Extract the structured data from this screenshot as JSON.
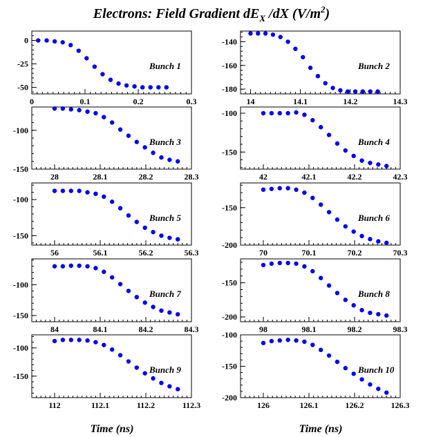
{
  "figure": {
    "title_main": "Electrons: Field Gradient dE",
    "title_sub": "X",
    "title_mid": " /dX (V/m",
    "title_sup": "2",
    "title_end": ")",
    "xlabel": "Time (ns)",
    "colors": {
      "points": "#0000ee",
      "axes": "#000000"
    }
  },
  "chart_data": [
    {
      "type": "scatter",
      "label": "Bunch 1",
      "xlim": [
        0,
        0.3
      ],
      "ylim": [
        -57,
        10
      ],
      "xticks": [
        "0",
        "0.1",
        "0.2",
        "0.3"
      ],
      "yticks": [
        "0",
        "-25",
        "-50"
      ],
      "x": [
        0.012,
        0.028,
        0.043,
        0.058,
        0.073,
        0.088,
        0.103,
        0.118,
        0.133,
        0.148,
        0.163,
        0.178,
        0.193,
        0.208,
        0.223,
        0.238,
        0.253
      ],
      "y": [
        0,
        0,
        -1,
        -2,
        -5,
        -11,
        -19,
        -28,
        -36,
        -42,
        -46,
        -48,
        -49,
        -50,
        -50,
        -50,
        -50
      ]
    },
    {
      "type": "scatter",
      "label": "Bunch 2",
      "xlim": [
        13.98,
        14.3
      ],
      "ylim": [
        -184,
        -131
      ],
      "xticks": [
        "14",
        "14.1",
        "14.2",
        "14.3"
      ],
      "yticks": [
        "-140",
        "-160",
        "-180"
      ],
      "x": [
        14.0,
        14.015,
        14.03,
        14.045,
        14.06,
        14.075,
        14.09,
        14.105,
        14.12,
        14.135,
        14.15,
        14.165,
        14.18,
        14.195,
        14.21,
        14.225,
        14.24,
        14.255
      ],
      "y": [
        -133,
        -133,
        -133,
        -134,
        -136,
        -140,
        -146,
        -153,
        -162,
        -169,
        -175,
        -179,
        -181,
        -182,
        -182,
        -182,
        -182,
        -182
      ]
    },
    {
      "type": "scatter",
      "label": "Bunch 3",
      "xlim": [
        27.95,
        28.3
      ],
      "ylim": [
        -150,
        -70
      ],
      "xticks": [
        "28",
        "28.1",
        "28.2",
        "28.3"
      ],
      "yticks": [
        "-100",
        "-150"
      ],
      "x": [
        28.0,
        28.018,
        28.036,
        28.054,
        28.072,
        28.09,
        28.108,
        28.126,
        28.144,
        28.162,
        28.18,
        28.198,
        28.216,
        28.234,
        28.252,
        28.27
      ],
      "y": [
        -72,
        -72,
        -73,
        -74,
        -76,
        -78,
        -83,
        -90,
        -99,
        -107,
        -115,
        -122,
        -129,
        -135,
        -138,
        -140
      ]
    },
    {
      "type": "scatter",
      "label": "Bunch 4",
      "xlim": [
        41.95,
        42.3
      ],
      "ylim": [
        -172,
        -92
      ],
      "xticks": [
        "42",
        "42.1",
        "42.2",
        "42.3"
      ],
      "yticks": [
        "-100",
        "-150"
      ],
      "x": [
        42.0,
        42.018,
        42.036,
        42.054,
        42.072,
        42.09,
        42.108,
        42.126,
        42.144,
        42.162,
        42.18,
        42.198,
        42.216,
        42.234,
        42.252,
        42.27
      ],
      "y": [
        -100,
        -100,
        -100,
        -100,
        -99,
        -102,
        -109,
        -118,
        -128,
        -139,
        -148,
        -155,
        -161,
        -164,
        -166,
        -168
      ]
    },
    {
      "type": "scatter",
      "label": "Bunch 5",
      "xlim": [
        55.95,
        56.3
      ],
      "ylim": [
        -163,
        -77
      ],
      "xticks": [
        "56",
        "56.1",
        "56.2",
        "56.3"
      ],
      "yticks": [
        "-100",
        "-150"
      ],
      "x": [
        56.0,
        56.018,
        56.036,
        56.054,
        56.072,
        56.09,
        56.108,
        56.126,
        56.144,
        56.162,
        56.18,
        56.198,
        56.216,
        56.234,
        56.252,
        56.27
      ],
      "y": [
        -88,
        -88,
        -88,
        -88,
        -90,
        -92,
        -96,
        -103,
        -112,
        -122,
        -131,
        -139,
        -145,
        -150,
        -153,
        -155
      ]
    },
    {
      "type": "scatter",
      "label": "Bunch 6",
      "xlim": [
        69.95,
        70.3
      ],
      "ylim": [
        -200,
        -117
      ],
      "xticks": [
        "70",
        "70.1",
        "70.2",
        "70.3"
      ],
      "yticks": [
        "-150",
        "-200"
      ],
      "x": [
        70.0,
        70.018,
        70.036,
        70.054,
        70.072,
        70.09,
        70.108,
        70.126,
        70.144,
        70.162,
        70.18,
        70.198,
        70.216,
        70.234,
        70.252,
        70.27
      ],
      "y": [
        -126,
        -125,
        -124,
        -124,
        -126,
        -130,
        -137,
        -146,
        -156,
        -166,
        -175,
        -182,
        -188,
        -192,
        -195,
        -197
      ]
    },
    {
      "type": "scatter",
      "label": "Bunch 7",
      "xlim": [
        83.95,
        84.3
      ],
      "ylim": [
        -160,
        -58
      ],
      "xticks": [
        "84",
        "84.1",
        "84.2",
        "84.3"
      ],
      "yticks": [
        "-100",
        "-150"
      ],
      "x": [
        84.0,
        84.018,
        84.036,
        84.054,
        84.072,
        84.09,
        84.108,
        84.126,
        84.144,
        84.162,
        84.18,
        84.198,
        84.216,
        84.234,
        84.252,
        84.27
      ],
      "y": [
        -70,
        -70,
        -69,
        -69,
        -70,
        -73,
        -79,
        -88,
        -99,
        -110,
        -120,
        -129,
        -136,
        -142,
        -145,
        -148
      ]
    },
    {
      "type": "scatter",
      "label": "Bunch 8",
      "xlim": [
        97.95,
        98.3
      ],
      "ylim": [
        -207,
        -115
      ],
      "xticks": [
        "98",
        "98.1",
        "98.2",
        "98.3"
      ],
      "yticks": [
        "-150",
        "-200"
      ],
      "x": [
        98.0,
        98.018,
        98.036,
        98.054,
        98.072,
        98.09,
        98.108,
        98.126,
        98.144,
        98.162,
        98.18,
        98.198,
        98.216,
        98.234,
        98.252,
        98.27
      ],
      "y": [
        -124,
        -122,
        -121,
        -121,
        -122,
        -126,
        -133,
        -143,
        -154,
        -165,
        -175,
        -183,
        -190,
        -194,
        -196,
        -198
      ]
    },
    {
      "type": "scatter",
      "label": "Bunch 9",
      "xlim": [
        111.95,
        112.3
      ],
      "ylim": [
        -188,
        -77
      ],
      "xticks": [
        "112",
        "112.1",
        "112.2",
        "112.3"
      ],
      "yticks": [
        "-100",
        "-150"
      ],
      "x": [
        112.0,
        112.018,
        112.036,
        112.054,
        112.072,
        112.09,
        112.108,
        112.126,
        112.144,
        112.162,
        112.18,
        112.198,
        112.216,
        112.234,
        112.252,
        112.27
      ],
      "y": [
        -88,
        -86,
        -86,
        -86,
        -87,
        -90,
        -95,
        -103,
        -113,
        -124,
        -135,
        -145,
        -154,
        -162,
        -168,
        -173
      ]
    },
    {
      "type": "scatter",
      "label": "Bunch 10",
      "xlim": [
        125.95,
        126.3
      ],
      "ylim": [
        -200,
        -100
      ],
      "xticks": [
        "126",
        "126.1",
        "126.2",
        "126.3"
      ],
      "yticks": [
        "-100",
        "-150",
        "-200"
      ],
      "x": [
        126.0,
        126.018,
        126.036,
        126.054,
        126.072,
        126.09,
        126.108,
        126.126,
        126.144,
        126.162,
        126.18,
        126.198,
        126.216,
        126.234,
        126.252,
        126.27
      ],
      "y": [
        -113,
        -110,
        -109,
        -108,
        -109,
        -111,
        -116,
        -124,
        -133,
        -143,
        -153,
        -162,
        -171,
        -179,
        -186,
        -192
      ]
    }
  ]
}
